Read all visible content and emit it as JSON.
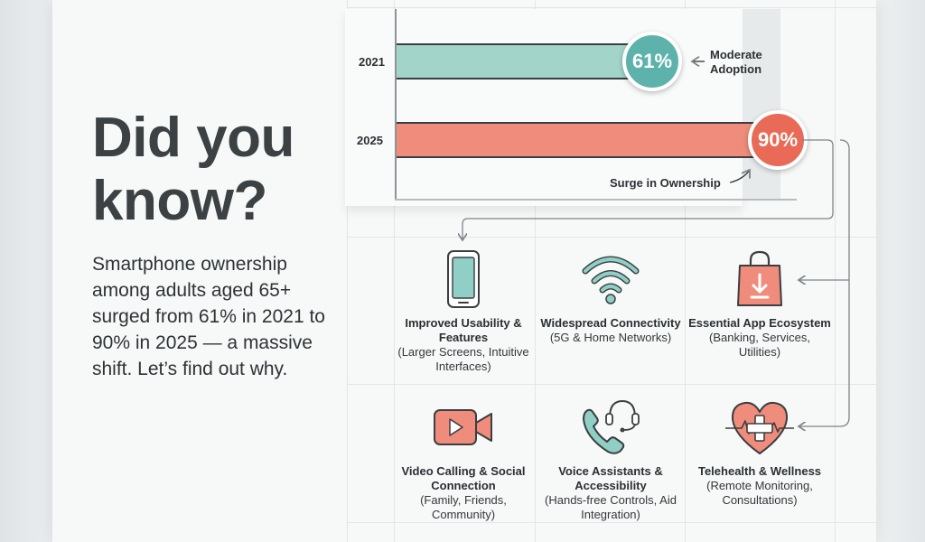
{
  "headline": "Did you know?",
  "lede": "Smartphone ownership among adults aged 65+ surged from 61% in 2021 to 90% in 2025 — a massive shift. Let’s find out why.",
  "colors": {
    "teal": "#a2d4c9",
    "teal_badge": "#5db3ab",
    "coral": "#ef8c7b",
    "coral_badge": "#e86a57",
    "icon_coral": "#ef8c7b",
    "icon_teal": "#8fcfc6",
    "outline": "#3b3f41"
  },
  "chart_data": {
    "type": "bar",
    "orientation": "horizontal",
    "title": "",
    "xlabel": "",
    "ylabel": "",
    "xlim": [
      0,
      100
    ],
    "categories": [
      "2021",
      "2025"
    ],
    "values": [
      61,
      90
    ],
    "value_labels": [
      "61%",
      "90%"
    ],
    "annotations": [
      "Moderate Adoption",
      "Surge in Ownership"
    ]
  },
  "features": [
    {
      "icon": "smartphone-icon",
      "title": "Improved Usability & Features",
      "sub": "(Larger Screens, Intuitive Interfaces)"
    },
    {
      "icon": "wifi-icon",
      "title": "Widespread Connectivity",
      "sub": "(5G & Home Networks)"
    },
    {
      "icon": "shopping-bag-icon",
      "title": "Essential App Ecosystem",
      "sub": "(Banking, Services, Utilities)"
    },
    {
      "icon": "video-camera-icon",
      "title": "Video Calling & Social Connection",
      "sub": "(Family, Friends, Community)"
    },
    {
      "icon": "headset-phone-icon",
      "title": "Voice Assistants & Accessibility",
      "sub": "(Hands-free Controls, Aid Integration)"
    },
    {
      "icon": "heart-health-icon",
      "title": "Telehealth & Wellness",
      "sub": "(Remote Monitoring, Consultations)"
    }
  ]
}
